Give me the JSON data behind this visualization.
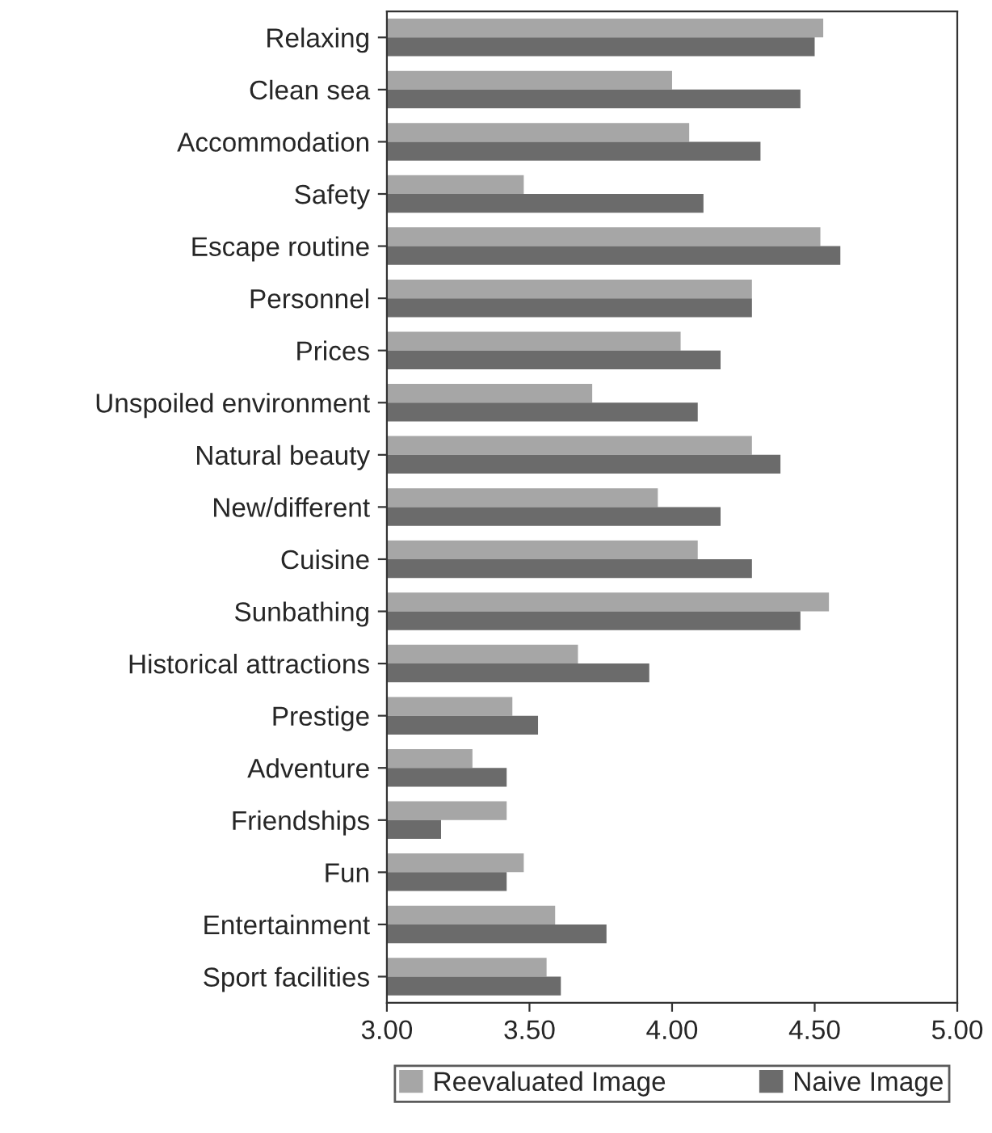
{
  "chart_data": {
    "type": "bar",
    "orientation": "horizontal",
    "categories": [
      "Relaxing",
      "Clean sea",
      "Accommodation",
      "Safety",
      "Escape routine",
      "Personnel",
      "Prices",
      "Unspoiled environment",
      "Natural beauty",
      "New/different",
      "Cuisine",
      "Sunbathing",
      "Historical attractions",
      "Prestige",
      "Adventure",
      "Friendships",
      "Fun",
      "Entertainment",
      "Sport facilities"
    ],
    "series": [
      {
        "name": "Reevaluated Image",
        "color": "#a6a6a6",
        "values": [
          4.53,
          4.0,
          4.06,
          3.48,
          4.52,
          4.28,
          4.03,
          3.72,
          4.28,
          3.95,
          4.09,
          4.55,
          3.67,
          3.44,
          3.3,
          3.42,
          3.48,
          3.59,
          3.56
        ]
      },
      {
        "name": "Naive Image",
        "color": "#6b6b6b",
        "values": [
          4.5,
          4.45,
          4.31,
          4.11,
          4.59,
          4.28,
          4.17,
          4.09,
          4.38,
          4.17,
          4.28,
          4.45,
          3.92,
          3.53,
          3.42,
          3.19,
          3.42,
          3.77,
          3.61
        ]
      }
    ],
    "xlim": [
      3.0,
      5.0
    ],
    "xticks": [
      {
        "value": 3.0,
        "label": "3.00"
      },
      {
        "value": 3.5,
        "label": "3.50"
      },
      {
        "value": 4.0,
        "label": "4.00"
      },
      {
        "value": 4.5,
        "label": "4.50"
      },
      {
        "value": 5.0,
        "label": "5.00"
      }
    ],
    "grid": false,
    "legend": "bottom"
  }
}
